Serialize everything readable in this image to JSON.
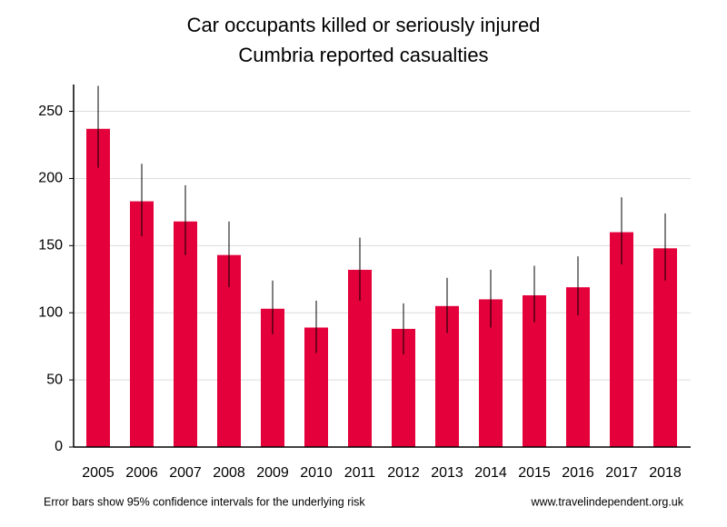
{
  "chart_data": {
    "type": "bar",
    "title": "Car occupants killed or seriously injured",
    "subtitle": "Cumbria reported casualties",
    "categories": [
      "2005",
      "2006",
      "2007",
      "2008",
      "2009",
      "2010",
      "2011",
      "2012",
      "2013",
      "2014",
      "2015",
      "2016",
      "2017",
      "2018"
    ],
    "values": [
      237,
      183,
      168,
      143,
      103,
      89,
      132,
      88,
      105,
      110,
      113,
      119,
      160,
      148
    ],
    "ci_low": [
      208,
      157,
      143,
      119,
      84,
      70,
      109,
      69,
      85,
      89,
      93,
      98,
      136,
      124
    ],
    "ci_high": [
      269,
      211,
      195,
      168,
      124,
      109,
      156,
      107,
      126,
      132,
      135,
      142,
      186,
      174
    ],
    "color": "#e4003a",
    "ylim": [
      0,
      270
    ],
    "yticks": [
      0,
      50,
      100,
      150,
      200,
      250
    ],
    "grid": true,
    "footnote": "Error bars show 95% confidence intervals for the underlying risk",
    "source": "www.travelindependent.org.uk"
  }
}
